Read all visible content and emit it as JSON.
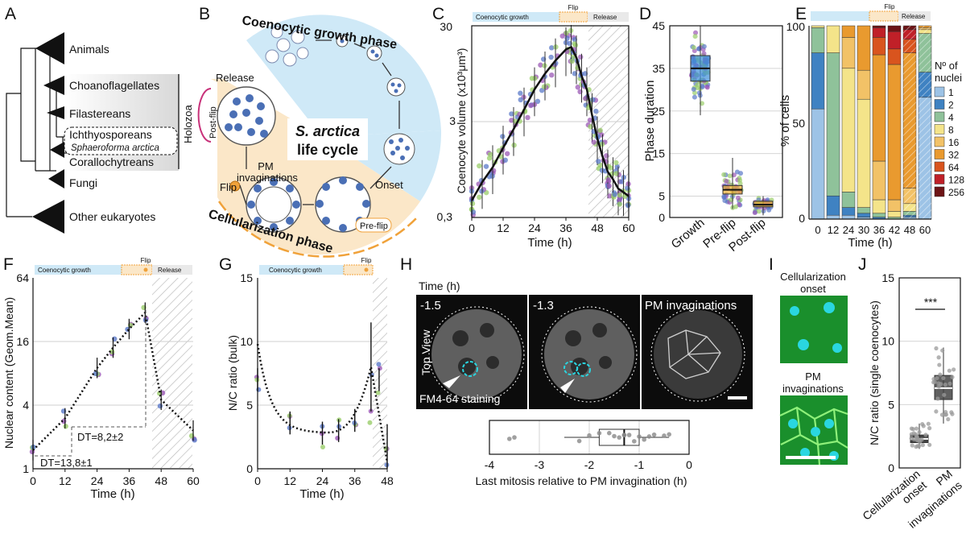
{
  "panels": {
    "A": {
      "letter": "A",
      "taxa": [
        "Animals",
        "Choanoflagellates",
        "Filastereans",
        "Ichthyosporeans",
        "Sphaeroforma arctica",
        "Corallochytreans",
        "Fungi",
        "Other eukaryotes"
      ],
      "bracket": "Holozoa"
    },
    "B": {
      "letter": "B",
      "title_line1": "S. arctica",
      "title_line2": "life cycle",
      "growth_phase": "Coenocytic growth phase",
      "cell_phase": "Cellularization phase",
      "release": "Release",
      "post_flip": "Post-flip",
      "pre_flip": "Pre-flip",
      "flip": "Flip",
      "pm_line1": "PM",
      "pm_line2": "invaginations",
      "onset": "Onset"
    },
    "C": {
      "letter": "C",
      "bar_growth": "Coenocytic growth",
      "bar_flip": "Flip",
      "bar_release": "Release",
      "ylabel": "Coenocyte volume (x10³μm³)",
      "xlabel": "Time (h)",
      "yticks": [
        "30",
        "3",
        "0,3"
      ],
      "xticks": [
        "0",
        "12",
        "24",
        "36",
        "48",
        "60"
      ]
    },
    "D": {
      "letter": "D",
      "ylabel": "Phase duration",
      "yticks": [
        "45",
        "35",
        "25",
        "15",
        "5",
        "0"
      ],
      "cats": [
        "Growth",
        "Pre-flip",
        "Post-flip"
      ]
    },
    "E": {
      "letter": "E",
      "bar_flip": "Flip",
      "bar_release": "Release",
      "ylabel": "% of cells",
      "xlabel": "Time (h)",
      "yticks": [
        "100",
        "50",
        "0"
      ],
      "xticks": [
        "0",
        "12",
        "24",
        "30",
        "36",
        "42",
        "48",
        "60"
      ],
      "legend_title1": "Nº of",
      "legend_title2": "nuclei",
      "legend": [
        "1",
        "2",
        "4",
        "8",
        "16",
        "32",
        "64",
        "128",
        "256"
      ]
    },
    "F": {
      "letter": "F",
      "bar_growth": "Coenocytic growth",
      "bar_flip": "Flip",
      "bar_release": "Release",
      "ylabel": "Nuclear content (Geom.Mean)",
      "xlabel": "Time (h)",
      "yticks": [
        "64",
        "16",
        "4",
        "1"
      ],
      "xticks": [
        "0",
        "12",
        "24",
        "36",
        "48",
        "60"
      ],
      "dt1": "DT=13,8±1",
      "dt2": "DT=8,2±2"
    },
    "G": {
      "letter": "G",
      "bar_growth": "Coenocytic growth",
      "bar_flip": "Flip",
      "ylabel": "N/C ratio (bulk)",
      "xlabel": "Time (h)",
      "yticks": [
        "15",
        "10",
        "5",
        "0"
      ],
      "xticks": [
        "0",
        "12",
        "24",
        "36",
        "48"
      ]
    },
    "H": {
      "letter": "H",
      "time_label": "Time (h)",
      "frames": [
        "-1.5",
        "-1.3",
        "PM invaginations"
      ],
      "top_view": "Top View",
      "stain": "FM4-64 staining",
      "xlabel": "Last mitosis relative to PM invagination (h)",
      "xticks": [
        "-4",
        "-3",
        "-2",
        "-1",
        "0"
      ]
    },
    "I": {
      "letter": "I",
      "top_line1": "Cellularization",
      "top_line2": "onset",
      "bot_line1": "PM",
      "bot_line2": "invaginations"
    },
    "J": {
      "letter": "J",
      "ylabel": "N/C ratio (single coenocytes)",
      "yticks": [
        "15",
        "10",
        "5",
        "0"
      ],
      "sig": "***",
      "cat1_line1": "Cellularization",
      "cat1_line2": "onset",
      "cat2_line1": "PM",
      "cat2_line2": "invaginations"
    }
  },
  "colors": {
    "growth_blue": "#cfe9f7",
    "cellular_orange": "#fbe7c8",
    "flip_orange": "#f0a23a",
    "pink": "#c8327a",
    "nucleus_blue": "#4a6fb5",
    "purple_dot": "#9b59b6",
    "green_dot": "#9acd6a",
    "blue_dot": "#5b79c8"
  },
  "chart_data": [
    {
      "panel": "C",
      "type": "line",
      "title": "",
      "xlabel": "Time (h)",
      "ylabel": "Coenocyte volume (x10³μm³)",
      "yscale": "log",
      "ylim": [
        0.3,
        30
      ],
      "xlim": [
        0,
        60
      ],
      "x": [
        0,
        4,
        8,
        12,
        16,
        20,
        24,
        28,
        32,
        36,
        38,
        40,
        42,
        44,
        46,
        48,
        50,
        52,
        54,
        56,
        58,
        60
      ],
      "series": [
        {
          "values": [
            0.45,
            0.7,
            1.0,
            1.6,
            2.5,
            4.0,
            6.5,
            9.5,
            13,
            17,
            18,
            14,
            9,
            6.5,
            3.5,
            2.0,
            1.3,
            0.9,
            0.75,
            0.6,
            0.55,
            0.5
          ]
        }
      ]
    },
    {
      "panel": "D",
      "type": "scatter",
      "categories": [
        "Growth",
        "Pre-flip",
        "Post-flip"
      ],
      "ylabel": "Phase duration",
      "ylim": [
        0,
        45
      ],
      "medians": [
        35,
        6.5,
        3
      ],
      "iqr": [
        [
          32,
          38
        ],
        [
          5.5,
          7.5
        ],
        [
          2.5,
          3.8
        ]
      ],
      "ranges": [
        [
          24,
          45
        ],
        [
          2,
          14
        ],
        [
          0.5,
          5
        ]
      ]
    },
    {
      "panel": "E",
      "type": "bar",
      "stacked": true,
      "categories": [
        "0",
        "12",
        "24",
        "30",
        "36",
        "42",
        "48",
        "60"
      ],
      "xlabel": "Time (h)",
      "ylabel": "% of cells",
      "ylim": [
        0,
        100
      ],
      "series": [
        {
          "name": "1",
          "values": [
            57,
            2,
            2,
            1,
            0,
            0,
            1,
            63
          ]
        },
        {
          "name": "2",
          "values": [
            29,
            10,
            4,
            2,
            1,
            0,
            1,
            13
          ]
        },
        {
          "name": "4",
          "values": [
            13,
            74,
            8,
            3,
            2,
            1,
            2,
            20
          ]
        },
        {
          "name": "8",
          "values": [
            1,
            14,
            64,
            56,
            7,
            3,
            4,
            2
          ]
        },
        {
          "name": "16",
          "values": [
            0,
            0,
            16,
            15,
            20,
            6,
            8,
            1
          ]
        },
        {
          "name": "32",
          "values": [
            0,
            0,
            6,
            23,
            55,
            70,
            70,
            1
          ]
        },
        {
          "name": "64",
          "values": [
            0,
            0,
            0,
            0,
            9,
            8,
            7,
            0
          ]
        },
        {
          "name": "128",
          "values": [
            0,
            0,
            0,
            0,
            5,
            9,
            5,
            0
          ]
        },
        {
          "name": "256",
          "values": [
            0,
            0,
            0,
            0,
            1,
            3,
            2,
            0
          ]
        }
      ],
      "colors": [
        "#9dc3e6",
        "#3f82c2",
        "#8fc29a",
        "#f4e48a",
        "#f2c267",
        "#e99a2f",
        "#d9541e",
        "#c02028",
        "#6d1416"
      ]
    },
    {
      "panel": "F",
      "type": "line",
      "xlabel": "Time (h)",
      "ylabel": "Nuclear content (Geom.Mean)",
      "yscale": "log2",
      "ylim": [
        1,
        64
      ],
      "xlim": [
        0,
        60
      ],
      "x": [
        0,
        12,
        24,
        30,
        36,
        42,
        48,
        60
      ],
      "series": [
        {
          "values": [
            1.5,
            3,
            9,
            14,
            21,
            30,
            4.5,
            2.3
          ]
        }
      ]
    },
    {
      "panel": "G",
      "type": "line",
      "xlabel": "Time (h)",
      "ylabel": "N/C ratio (bulk)",
      "ylim": [
        0,
        15
      ],
      "xlim": [
        0,
        48
      ],
      "x": [
        0,
        12,
        24,
        30,
        36,
        42,
        45,
        48
      ],
      "series": [
        {
          "values": [
            7,
            3.6,
            2.8,
            3,
            3.8,
            8,
            7,
            0.5
          ]
        }
      ]
    },
    {
      "panel": "H",
      "type": "scatter",
      "xlabel": "Last mitosis relative to PM invagination (h)",
      "xlim": [
        -4,
        0
      ],
      "values": [
        -3.6,
        -3.5,
        -2.2,
        -2,
        -1.8,
        -1.6,
        -1.5,
        -1.4,
        -1.3,
        -1.3,
        -1.2,
        -1.1,
        -1.0,
        -0.9,
        -0.8,
        -0.7,
        -0.5,
        -0.4
      ],
      "median": -1.3,
      "iqr": [
        -1.8,
        -1.0
      ]
    },
    {
      "panel": "J",
      "type": "scatter",
      "categories": [
        "Cellularization onset",
        "PM invaginations"
      ],
      "ylabel": "N/C ratio (single coenocytes)",
      "ylim": [
        0,
        15
      ],
      "medians": [
        2.3,
        6.3
      ],
      "iqr": [
        [
          2.0,
          2.6
        ],
        [
          5.4,
          7.3
        ]
      ],
      "ranges": [
        [
          1.5,
          3.5
        ],
        [
          3.5,
          9.5
        ]
      ]
    }
  ]
}
